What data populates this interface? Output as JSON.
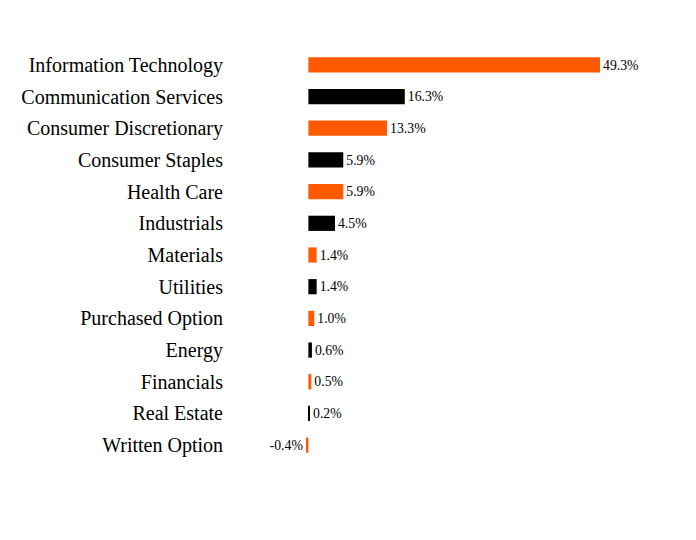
{
  "chart_data": {
    "type": "bar",
    "orientation": "horizontal",
    "categories": [
      "Information Technology",
      "Communication Services",
      "Consumer Discretionary",
      "Consumer Staples",
      "Health Care",
      "Industrials",
      "Materials",
      "Utilities",
      "Purchased Option",
      "Energy",
      "Financials",
      "Real Estate",
      "Written Option"
    ],
    "values": [
      49.3,
      16.3,
      13.3,
      5.9,
      5.9,
      4.5,
      1.4,
      1.4,
      1.0,
      0.6,
      0.5,
      0.2,
      -0.4
    ],
    "value_labels": [
      "49.3%",
      "16.3%",
      "13.3%",
      "5.9%",
      "5.9%",
      "4.5%",
      "1.4%",
      "1.4%",
      "1.0%",
      "0.6%",
      "0.5%",
      "0.2%",
      "-0.4%"
    ],
    "colors": [
      "#ff5a00",
      "#000000",
      "#ff5a00",
      "#000000",
      "#ff5a00",
      "#000000",
      "#ff5a00",
      "#000000",
      "#ff5a00",
      "#000000",
      "#ff5a00",
      "#000000",
      "#ff5a00"
    ],
    "xlim": [
      -0.4,
      49.3
    ],
    "tick_labels": "y",
    "grid": false,
    "data_labels": true
  }
}
